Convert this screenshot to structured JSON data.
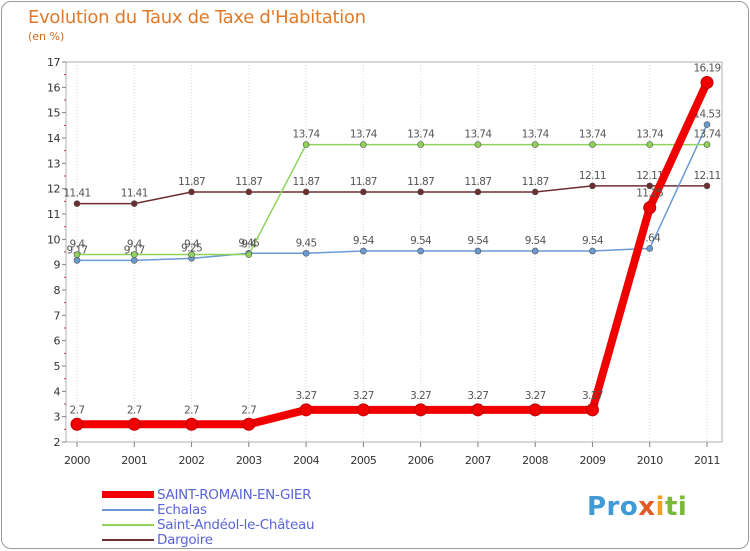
{
  "chart_data": {
    "type": "line",
    "title": "Evolution du Taux de Taxe d'Habitation",
    "subtitle": "(en %)",
    "xlabel": "",
    "ylabel": "",
    "ylim": [
      2,
      17
    ],
    "yticks": [
      2,
      3,
      4,
      5,
      6,
      7,
      8,
      9,
      10,
      11,
      12,
      13,
      14,
      15,
      16,
      17
    ],
    "categories": [
      "2000",
      "2001",
      "2002",
      "2003",
      "2004",
      "2005",
      "2006",
      "2007",
      "2008",
      "2009",
      "2010",
      "2011"
    ],
    "series": [
      {
        "name": "Dargoire",
        "color": "#6e2e30",
        "values": [
          11.41,
          11.41,
          11.87,
          11.87,
          11.87,
          11.87,
          11.87,
          11.87,
          11.87,
          12.11,
          12.11,
          12.11
        ],
        "labels": [
          "11.41",
          "11.41",
          "11.87",
          "11.87",
          "11.87",
          "11.87",
          "11.87",
          "11.87",
          "11.87",
          "12.11",
          "12.11",
          "12.11"
        ]
      },
      {
        "name": "Echalas",
        "color": "#6a9ad2",
        "values": [
          9.17,
          9.17,
          9.25,
          9.45,
          9.45,
          9.54,
          9.54,
          9.54,
          9.54,
          9.54,
          9.64,
          14.53
        ],
        "labels": [
          "9.17",
          "9.17",
          "9.25",
          "9.45",
          "9.45",
          "9.54",
          "9.54",
          "9.54",
          "9.54",
          "9.54",
          "9.64",
          "14.53"
        ]
      },
      {
        "name": "Saint-Andéol-le-Château",
        "color": "#8ed45a",
        "values": [
          9.4,
          9.4,
          9.4,
          9.4,
          13.74,
          13.74,
          13.74,
          13.74,
          13.74,
          13.74,
          13.74,
          13.74
        ],
        "labels": [
          "9.4",
          "9.4",
          "9.4",
          "9.4",
          "13.74",
          "13.74",
          "13.74",
          "13.74",
          "13.74",
          "13.74",
          "13.74",
          "13.74"
        ]
      },
      {
        "name": "SAINT-ROMAIN-EN-GIER",
        "color": "#f00000",
        "values": [
          2.7,
          2.7,
          2.7,
          2.7,
          3.27,
          3.27,
          3.27,
          3.27,
          3.27,
          3.27,
          11.25,
          16.19
        ],
        "labels": [
          "2.7",
          "2.7",
          "2.7",
          "2.7",
          "3.27",
          "3.27",
          "3.27",
          "3.27",
          "3.27",
          "3.27",
          "11.25",
          "16.19"
        ]
      }
    ],
    "legend": {
      "placement": "bottom-left",
      "items": [
        {
          "name": "SAINT-ROMAIN-EN-GIER",
          "color": "#f00000"
        },
        {
          "name": "Echalas",
          "color": "#6a9ad2"
        },
        {
          "name": "Saint-Andéol-le-Château",
          "color": "#8ed45a"
        },
        {
          "name": "Dargoire",
          "color": "#6e2e30"
        }
      ]
    }
  },
  "brand": {
    "parts": [
      "Pro",
      "x",
      "i",
      "ti"
    ]
  }
}
